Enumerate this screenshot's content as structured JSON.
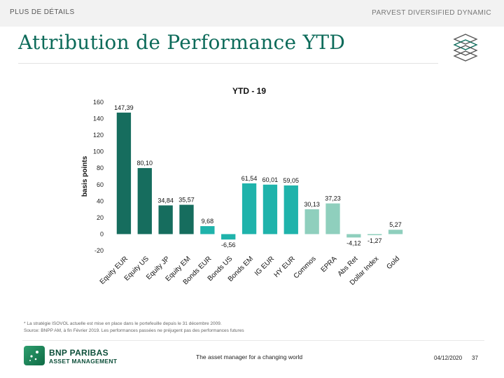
{
  "header": {
    "nav_link": "PLUS DE DÉTAILS",
    "fund_name": "PARVEST DIVERSIFIED DYNAMIC",
    "slide_title": "Attribution de Performance YTD"
  },
  "chart_data": {
    "type": "bar",
    "title": "YTD - 19",
    "xlabel": "",
    "ylabel": "basis points",
    "ylim": [
      -20,
      160
    ],
    "yticks": [
      160,
      140,
      120,
      100,
      80,
      60,
      40,
      20,
      0,
      -20
    ],
    "categories": [
      "Equity EUR",
      "Equity US",
      "Equity JP",
      "Equity EM",
      "Bonds EUR",
      "Bonds US",
      "Bonds EM",
      "IG EUR",
      "HY EUR",
      "Commos",
      "EPRA",
      "Abs Ret",
      "Dollar Index",
      "Gold"
    ],
    "values": [
      147.39,
      80.1,
      34.84,
      35.57,
      9.68,
      -6.56,
      61.54,
      60.01,
      59.05,
      30.13,
      37.23,
      -4.12,
      -1.27,
      5.27
    ],
    "labels": [
      "147,39",
      "80,10",
      "34,84",
      "35,57",
      "9,68",
      "-6,56",
      "61,54",
      "60,01",
      "59,05",
      "30,13",
      "37,23",
      "-4,12",
      "-1,27",
      "5,27"
    ],
    "colors": [
      "#166d5e",
      "#166d5e",
      "#166d5e",
      "#166d5e",
      "#1fb3ab",
      "#1fb3ab",
      "#1fb3ab",
      "#1fb3ab",
      "#1fb3ab",
      "#8fcfbd",
      "#8fcfbd",
      "#8fcfbd",
      "#8fcfbd",
      "#8fcfbd"
    ]
  },
  "footnotes": {
    "line1": "* La stratégie ISOVOL actuelle est mise en place dans le portefeuille depuis le 31 décembre 2009.",
    "line2": "Source: BNPP AM, à fin Février 2019. Les performances passées ne préjugent pas des performances futures"
  },
  "footer": {
    "logo_line1": "BNP PARIBAS",
    "logo_line2": "ASSET MANAGEMENT",
    "tagline": "The asset manager for a changing world",
    "date": "04/12/2020",
    "page_number": "37"
  }
}
